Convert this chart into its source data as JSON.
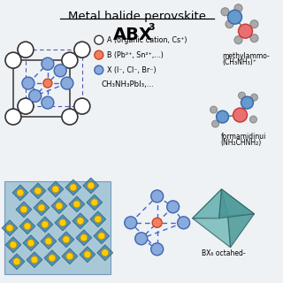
{
  "title": "Metal halide perovskite",
  "bg_color": "#eef2f5",
  "legend_labels": [
    "A (organic cation, Cs⁺)",
    "B (Pb²⁺, Sn²⁺,...)",
    "X (I⁻, Cl⁻, Br⁻)"
  ],
  "legend_colors": [
    "white",
    "#f08060",
    "#88aadd"
  ],
  "legend_ecs": [
    "#333333",
    "#cc4422",
    "#4466aa"
  ],
  "formula2": "CH₃NH₃PbI₃,...",
  "methylammonium_line1": "methylammo-",
  "methylammonium_line2": "(CH₃NH₃)⁺",
  "formamidinium_line1": "formamidinui",
  "formamidinium_line2": "(NH₂CHNH₂)",
  "bx6_label": "BX₆ octahed-",
  "A_color": "white",
  "A_ec": "#333333",
  "B_color": "#f08060",
  "B_ec": "#cc4422",
  "X_color": "#88aadd",
  "X_ec": "#4466aa",
  "gray_color": "#aaaaaa",
  "gray_ec": "#888888",
  "blue_mol_color": "#6699cc",
  "blue_mol_ec": "#3366aa",
  "red_mol_color": "#e87070",
  "red_mol_ec": "#cc3333",
  "oct_dashed_color": "#4466cc",
  "cube_solid_color": "#333333",
  "cube_dashed_color": "#5555aa",
  "teal_face1": "#7bbcbc",
  "teal_face2": "#4d9999",
  "teal_edge": "#336666",
  "lattice_bg": "#a8c8d8",
  "lattice_oct": "#4488aa",
  "lattice_oct_edge": "#225577",
  "lattice_yellow": "#ffcc00",
  "lattice_yellow_ec": "#cc8800"
}
